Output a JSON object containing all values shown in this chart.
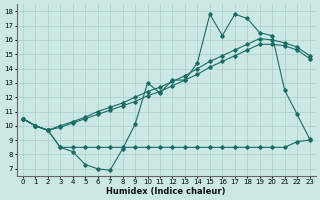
{
  "xlabel": "Humidex (Indice chaleur)",
  "bg_color": "#cce8e5",
  "line_color": "#1a6b65",
  "grid_color": "#aacfcc",
  "xlim": [
    -0.5,
    23.5
  ],
  "ylim": [
    6.5,
    18.5
  ],
  "yticks": [
    7,
    8,
    9,
    10,
    11,
    12,
    13,
    14,
    15,
    16,
    17,
    18
  ],
  "xticks": [
    0,
    1,
    2,
    3,
    4,
    5,
    6,
    7,
    8,
    9,
    10,
    11,
    12,
    13,
    14,
    15,
    16,
    17,
    18,
    19,
    20,
    21,
    22,
    23
  ],
  "line1_x": [
    0,
    1,
    2,
    3,
    4,
    5,
    6,
    7,
    8,
    9,
    10,
    11,
    12,
    13,
    14,
    15,
    16,
    17,
    18,
    19,
    20,
    21,
    22,
    23
  ],
  "line1_y": [
    10.5,
    10.0,
    9.7,
    8.5,
    8.2,
    7.3,
    7.0,
    6.9,
    8.4,
    10.1,
    13.0,
    12.3,
    13.2,
    13.2,
    14.4,
    17.8,
    16.3,
    17.8,
    17.5,
    16.5,
    16.3,
    12.5,
    10.8,
    9.1
  ],
  "line2_x": [
    0,
    1,
    2,
    3,
    4,
    5,
    6,
    7,
    8,
    9,
    10,
    11,
    12,
    13,
    14,
    15,
    16,
    17,
    18,
    19,
    20,
    21,
    22,
    23
  ],
  "line2_y": [
    10.5,
    10.0,
    9.7,
    10.0,
    10.3,
    10.6,
    11.0,
    11.3,
    11.6,
    12.0,
    12.4,
    12.7,
    13.1,
    13.5,
    14.0,
    14.5,
    14.9,
    15.3,
    15.7,
    16.1,
    16.0,
    15.8,
    15.5,
    14.9
  ],
  "line3_x": [
    0,
    1,
    2,
    3,
    4,
    5,
    6,
    7,
    8,
    9,
    10,
    11,
    12,
    13,
    14,
    15,
    16,
    17,
    18,
    19,
    20,
    21,
    22,
    23
  ],
  "line3_y": [
    10.5,
    10.0,
    9.7,
    9.9,
    10.2,
    10.5,
    10.8,
    11.1,
    11.4,
    11.7,
    12.1,
    12.4,
    12.8,
    13.2,
    13.6,
    14.1,
    14.5,
    14.9,
    15.3,
    15.7,
    15.7,
    15.6,
    15.3,
    14.7
  ],
  "line4_x": [
    0,
    1,
    2,
    3,
    4,
    5,
    6,
    7,
    8,
    9,
    10,
    11,
    12,
    13,
    14,
    15,
    16,
    17,
    18,
    19,
    20,
    21,
    22,
    23
  ],
  "line4_y": [
    10.5,
    10.0,
    9.7,
    8.5,
    8.5,
    8.5,
    8.5,
    8.5,
    8.5,
    8.5,
    8.5,
    8.5,
    8.5,
    8.5,
    8.5,
    8.5,
    8.5,
    8.5,
    8.5,
    8.5,
    8.5,
    8.5,
    8.9,
    9.0
  ],
  "markersize": 1.8,
  "linewidth": 0.8
}
